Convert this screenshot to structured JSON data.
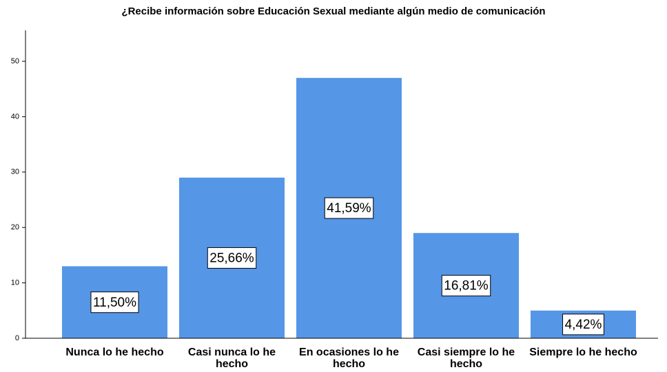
{
  "chart_data": {
    "type": "bar",
    "title": "¿Recibe información sobre Educación Sexual mediante algún medio de comunicación",
    "categories": [
      "Nunca lo he hecho",
      "Casi nunca lo he hecho",
      "En ocasiones lo he hecho",
      "Casi siempre lo he hecho",
      "Siempre lo he hecho"
    ],
    "values": [
      13,
      29,
      47,
      19,
      5
    ],
    "percent_values": [
      11.5,
      25.66,
      41.59,
      16.81,
      4.42
    ],
    "percent_labels": [
      "11,50%",
      "25,66%",
      "41,59%",
      "16,81%",
      "4,42%"
    ],
    "color": "#5596e6",
    "ylim": [
      0,
      55
    ],
    "yticks": [
      0,
      10,
      20,
      30,
      40,
      50
    ],
    "grid": false
  }
}
